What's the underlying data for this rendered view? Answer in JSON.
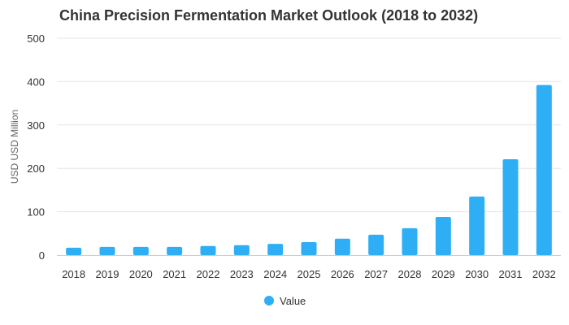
{
  "chart_data": {
    "type": "bar",
    "title": "China Precision Fermentation Market Outlook (2018 to 2032)",
    "xlabel": "",
    "ylabel": "USD USD Million",
    "categories": [
      "2018",
      "2019",
      "2020",
      "2021",
      "2022",
      "2023",
      "2024",
      "2025",
      "2026",
      "2027",
      "2028",
      "2029",
      "2030",
      "2031",
      "2032"
    ],
    "series": [
      {
        "name": "Value",
        "color": "#2eaff5",
        "values": [
          17,
          19,
          19,
          19,
          21,
          23,
          26,
          30,
          38,
          47,
          62,
          88,
          135,
          221,
          392
        ]
      }
    ],
    "ylim": [
      0,
      500
    ],
    "yticks": [
      "0",
      "100",
      "200",
      "300",
      "400",
      "500"
    ],
    "grid": true,
    "legend_position": "bottom"
  }
}
